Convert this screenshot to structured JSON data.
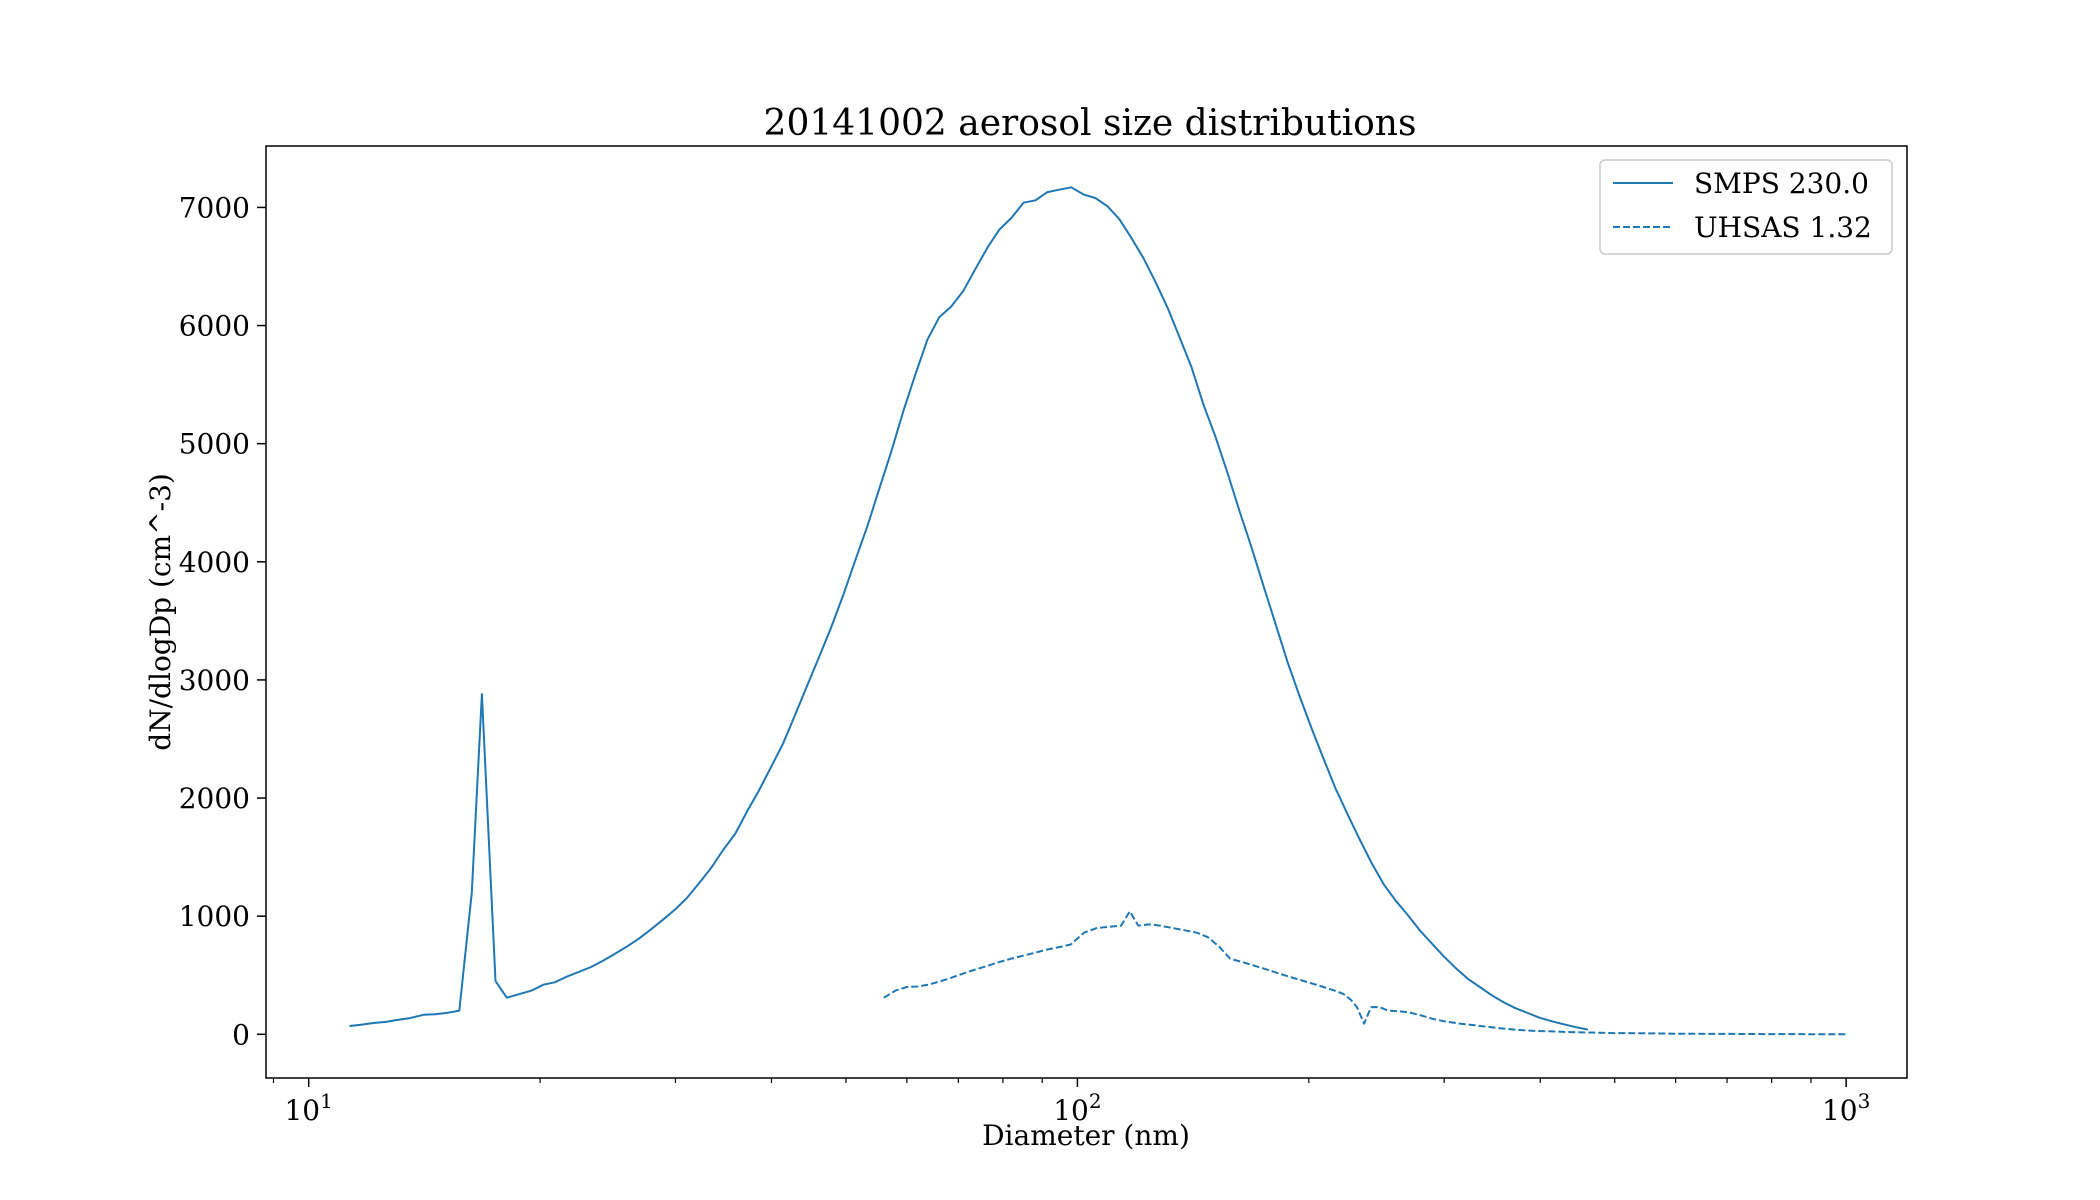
{
  "chart_data": {
    "type": "line",
    "title": "20141002 aerosol size distributions",
    "xlabel": "Diameter (nm)",
    "ylabel": "dN/dlogDp (cm^-3)",
    "xscale": "log",
    "xlim": [
      8.8,
      1200
    ],
    "ylim": [
      -370,
      7520
    ],
    "x_major_ticks": [
      {
        "value": 10,
        "base": "10",
        "exp": "1"
      },
      {
        "value": 100,
        "base": "10",
        "exp": "2"
      },
      {
        "value": 1000,
        "base": "10",
        "exp": "3"
      }
    ],
    "y_ticks": [
      0,
      1000,
      2000,
      3000,
      4000,
      5000,
      6000,
      7000
    ],
    "grid": false,
    "legend_position": "upper right",
    "line_color": "#1f77b4",
    "series": [
      {
        "name": "SMPS 230.0",
        "style": "solid",
        "x": [
          11.3,
          11.7,
          12.1,
          12.6,
          13.0,
          13.5,
          14.1,
          14.6,
          15.1,
          15.7,
          16.3,
          16.8,
          17.5,
          18.1,
          18.8,
          19.5,
          20.2,
          20.9,
          21.7,
          22.5,
          23.3,
          24.1,
          25.0,
          25.9,
          26.9,
          27.9,
          28.9,
          30.0,
          31.1,
          32.2,
          33.4,
          34.6,
          35.9,
          37.2,
          38.5,
          40.0,
          41.4,
          42.9,
          44.5,
          46.1,
          47.8,
          49.6,
          51.4,
          53.3,
          55.2,
          57.3,
          59.4,
          61.5,
          63.8,
          66.1,
          68.5,
          71.0,
          73.7,
          76.4,
          79.1,
          82.0,
          85.1,
          88.2,
          91.4,
          94.7,
          98.2,
          101.8,
          105.5,
          109.4,
          113.4,
          117.6,
          121.9,
          126.3,
          131.0,
          135.8,
          140.7,
          145.9,
          151.2,
          156.8,
          162.5,
          168.5,
          174.7,
          181.1,
          187.7,
          194.6,
          201.7,
          209.1,
          216.7,
          224.7,
          232.9,
          241.4,
          250.3,
          259.5,
          269.0,
          278.8,
          289.0,
          299.6,
          310.6,
          322.0,
          333.8,
          346.0,
          358.7,
          371.8,
          385.4,
          399.5,
          414.2,
          429.4,
          445.1,
          461.4
        ],
        "y": [
          70,
          80,
          95,
          105,
          120,
          135,
          165,
          170,
          180,
          200,
          1200,
          2880,
          450,
          310,
          340,
          370,
          420,
          440,
          490,
          530,
          570,
          620,
          680,
          740,
          810,
          890,
          970,
          1060,
          1160,
          1280,
          1410,
          1560,
          1700,
          1890,
          2060,
          2270,
          2460,
          2700,
          2950,
          3190,
          3440,
          3720,
          4010,
          4300,
          4610,
          4940,
          5280,
          5580,
          5880,
          6070,
          6160,
          6290,
          6480,
          6660,
          6810,
          6910,
          7040,
          7060,
          7130,
          7150,
          7170,
          7110,
          7080,
          7010,
          6900,
          6740,
          6570,
          6370,
          6150,
          5900,
          5650,
          5330,
          5060,
          4750,
          4430,
          4120,
          3790,
          3470,
          3150,
          2860,
          2590,
          2330,
          2080,
          1860,
          1650,
          1450,
          1270,
          1130,
          1010,
          880,
          770,
          660,
          560,
          470,
          400,
          330,
          270,
          220,
          180,
          140,
          110,
          85,
          60,
          40
        ]
      },
      {
        "name": "UHSAS 1.32",
        "style": "dashed",
        "x": [
          56,
          58,
          60,
          62,
          64,
          66,
          68,
          70,
          73,
          76,
          79,
          82,
          85,
          88,
          91,
          95,
          98,
          102,
          106,
          110,
          114,
          117,
          120,
          124,
          128,
          133,
          138,
          143,
          148,
          153,
          158,
          164,
          170,
          176,
          182,
          188,
          195,
          202,
          209,
          216,
          222,
          227,
          231,
          236,
          241,
          247,
          254,
          262,
          270,
          280,
          290,
          300,
          315,
          330,
          350,
          370,
          390,
          410,
          430,
          460,
          500,
          550,
          600,
          700,
          800,
          900,
          1000
        ],
        "y": [
          310,
          370,
          400,
          405,
          420,
          445,
          470,
          500,
          540,
          575,
          610,
          640,
          665,
          690,
          715,
          740,
          760,
          860,
          900,
          910,
          920,
          1040,
          920,
          930,
          920,
          900,
          880,
          860,
          820,
          740,
          640,
          610,
          580,
          550,
          520,
          490,
          460,
          430,
          400,
          370,
          340,
          290,
          230,
          90,
          230,
          230,
          200,
          195,
          185,
          160,
          130,
          110,
          90,
          75,
          55,
          40,
          30,
          25,
          20,
          15,
          10,
          8,
          5,
          3,
          2,
          1,
          1
        ]
      }
    ]
  }
}
